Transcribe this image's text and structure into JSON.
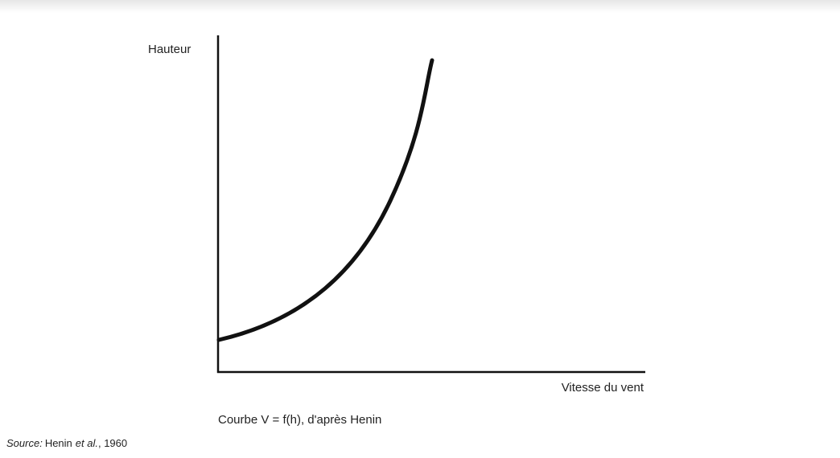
{
  "figure": {
    "y_axis_label": "Hauteur",
    "x_axis_label": "Vitesse du vent",
    "caption": "Courbe V = f(h), d'après Henin",
    "source": {
      "prefix": "Source:",
      "author": "Henin",
      "etal": "et al.",
      "year": ", 1960"
    }
  }
}
